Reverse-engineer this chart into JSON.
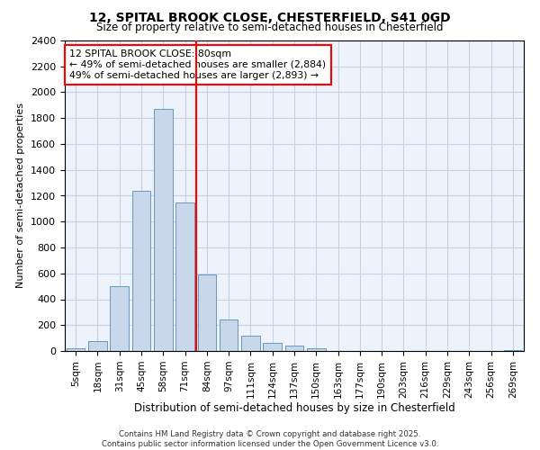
{
  "title1": "12, SPITAL BROOK CLOSE, CHESTERFIELD, S41 0GD",
  "title2": "Size of property relative to semi-detached houses in Chesterfield",
  "xlabel": "Distribution of semi-detached houses by size in Chesterfield",
  "ylabel": "Number of semi-detached properties",
  "bar_labels": [
    "5sqm",
    "18sqm",
    "31sqm",
    "45sqm",
    "58sqm",
    "71sqm",
    "84sqm",
    "97sqm",
    "111sqm",
    "124sqm",
    "137sqm",
    "150sqm",
    "163sqm",
    "177sqm",
    "190sqm",
    "203sqm",
    "216sqm",
    "229sqm",
    "243sqm",
    "256sqm",
    "269sqm"
  ],
  "bar_values": [
    20,
    80,
    500,
    1240,
    1870,
    1150,
    590,
    245,
    115,
    60,
    40,
    20,
    0,
    0,
    0,
    0,
    0,
    0,
    0,
    0,
    10
  ],
  "bar_color": "#c8d8ea",
  "bar_edge_color": "#6699bb",
  "vline_index": 5.5,
  "vline_color": "red",
  "annotation_title": "12 SPITAL BROOK CLOSE: 80sqm",
  "annotation_line1": "← 49% of semi-detached houses are smaller (2,884)",
  "annotation_line2": "49% of semi-detached houses are larger (2,893) →",
  "ylim": [
    0,
    2400
  ],
  "yticks": [
    0,
    200,
    400,
    600,
    800,
    1000,
    1200,
    1400,
    1600,
    1800,
    2000,
    2200,
    2400
  ],
  "footer1": "Contains HM Land Registry data © Crown copyright and database right 2025.",
  "footer2": "Contains public sector information licensed under the Open Government Licence v3.0.",
  "bg_color": "#eef2fb",
  "grid_color": "#c8cfe8"
}
